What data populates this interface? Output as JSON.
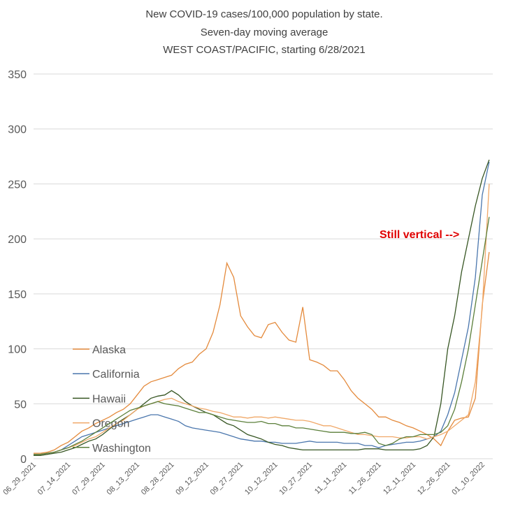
{
  "chart_data": {
    "type": "line",
    "title": "New COVID-19 cases/100,000 population by state.",
    "subtitle": "Seven-day moving average",
    "subtitle2": "WEST COAST/PACIFIC, starting 6/28/2021",
    "annotation": "Still vertical -->",
    "categories": [
      "06_29_2021",
      null,
      null,
      null,
      null,
      "07_14_2021",
      null,
      null,
      null,
      null,
      "07_29_2021",
      null,
      null,
      null,
      null,
      "08_13_2021",
      null,
      null,
      null,
      null,
      "08_28_2021",
      null,
      null,
      null,
      null,
      "09_12_2021",
      null,
      null,
      null,
      null,
      "09_27_2021",
      null,
      null,
      null,
      null,
      "10_12_2021",
      null,
      null,
      null,
      null,
      "10_27_2021",
      null,
      null,
      null,
      null,
      "11_11_2021",
      null,
      null,
      null,
      null,
      "11_26_2021",
      null,
      null,
      null,
      null,
      "12_11_2021",
      null,
      null,
      null,
      null,
      "12_26_2021",
      null,
      null,
      null,
      null,
      "01_10_2022",
      null
    ],
    "ylim": [
      0,
      350
    ],
    "yticks": [
      0,
      50,
      100,
      150,
      200,
      250,
      300,
      350
    ],
    "grid": true,
    "series": [
      {
        "name": "Alaska",
        "color": "#e48a3c",
        "values": [
          5,
          5,
          6,
          8,
          12,
          15,
          20,
          25,
          28,
          32,
          35,
          38,
          42,
          45,
          50,
          58,
          66,
          70,
          72,
          74,
          76,
          82,
          86,
          88,
          95,
          100,
          115,
          140,
          178,
          165,
          130,
          120,
          112,
          110,
          122,
          124,
          115,
          108,
          106,
          138,
          90,
          88,
          85,
          80,
          80,
          72,
          62,
          55,
          50,
          45,
          38,
          38,
          35,
          33,
          30,
          28,
          25,
          22,
          18,
          12,
          25,
          35,
          37,
          38,
          55,
          140,
          188
        ]
      },
      {
        "name": "California",
        "color": "#4a76ad",
        "values": [
          4,
          4,
          5,
          6,
          8,
          12,
          16,
          20,
          22,
          24,
          26,
          28,
          30,
          32,
          34,
          36,
          38,
          40,
          40,
          38,
          36,
          34,
          30,
          28,
          27,
          26,
          25,
          24,
          22,
          20,
          18,
          17,
          16,
          16,
          15,
          15,
          14,
          14,
          14,
          15,
          16,
          15,
          15,
          15,
          15,
          14,
          14,
          14,
          12,
          12,
          10,
          12,
          13,
          14,
          15,
          15,
          16,
          18,
          20,
          25,
          40,
          60,
          90,
          120,
          165,
          240,
          270
        ]
      },
      {
        "name": "Hawaii",
        "color": "#375623",
        "values": [
          3,
          3,
          4,
          5,
          6,
          8,
          10,
          13,
          16,
          18,
          22,
          27,
          32,
          36,
          40,
          45,
          50,
          55,
          57,
          58,
          62,
          58,
          52,
          48,
          45,
          42,
          40,
          36,
          32,
          30,
          26,
          22,
          20,
          18,
          15,
          13,
          12,
          10,
          9,
          8,
          8,
          8,
          8,
          8,
          8,
          8,
          8,
          8,
          9,
          9,
          9,
          8,
          8,
          8,
          8,
          8,
          9,
          12,
          20,
          50,
          100,
          130,
          170,
          200,
          230,
          255,
          272
        ]
      },
      {
        "name": "Oregon",
        "color": "#f0a868",
        "values": [
          4,
          4,
          5,
          6,
          8,
          10,
          12,
          15,
          18,
          20,
          24,
          28,
          32,
          35,
          40,
          45,
          48,
          50,
          52,
          54,
          55,
          52,
          50,
          48,
          46,
          45,
          43,
          42,
          40,
          38,
          38,
          37,
          38,
          38,
          37,
          38,
          37,
          36,
          35,
          35,
          34,
          32,
          30,
          30,
          28,
          26,
          24,
          22,
          22,
          21,
          20,
          20,
          20,
          19,
          19,
          20,
          20,
          18,
          20,
          22,
          25,
          30,
          35,
          40,
          70,
          137,
          250
        ]
      },
      {
        "name": "Washington",
        "color": "#5b7f3a",
        "values": [
          4,
          4,
          5,
          6,
          8,
          10,
          13,
          16,
          20,
          24,
          28,
          32,
          36,
          40,
          44,
          46,
          48,
          50,
          52,
          50,
          49,
          48,
          46,
          44,
          42,
          42,
          40,
          38,
          36,
          35,
          34,
          33,
          33,
          34,
          32,
          32,
          30,
          30,
          28,
          28,
          27,
          26,
          25,
          24,
          24,
          24,
          23,
          23,
          24,
          22,
          14,
          12,
          14,
          18,
          20,
          20,
          22,
          22,
          22,
          24,
          30,
          45,
          70,
          100,
          140,
          180,
          220
        ]
      }
    ]
  }
}
